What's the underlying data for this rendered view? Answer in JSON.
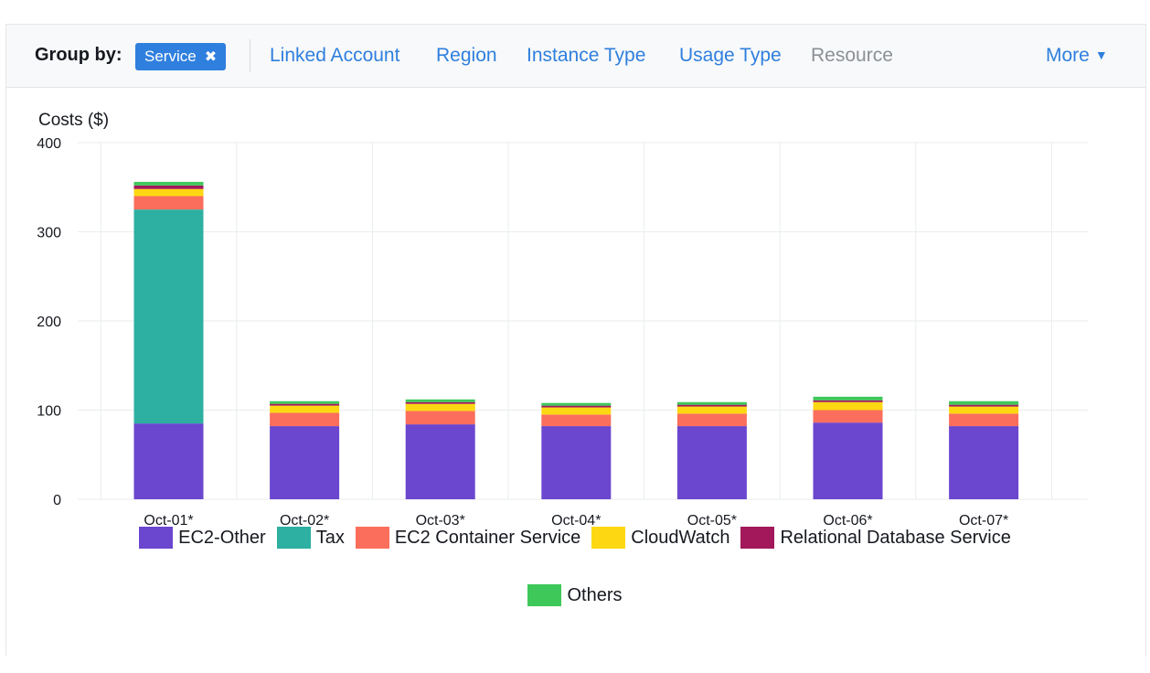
{
  "groupby": {
    "label": "Group by:",
    "active_chip": "Service",
    "options": [
      "Linked Account",
      "Region",
      "Instance Type",
      "Usage Type"
    ],
    "disabled_option": "Resource",
    "more_label": "More"
  },
  "chart_data": {
    "type": "bar",
    "stacked": true,
    "ylabel": "Costs ($)",
    "ylim": [
      0,
      400
    ],
    "yticks": [
      0,
      100,
      200,
      300,
      400
    ],
    "grid": true,
    "legend_position": "bottom",
    "categories": [
      "Oct-01*",
      "Oct-02*",
      "Oct-03*",
      "Oct-04*",
      "Oct-05*",
      "Oct-06*",
      "Oct-07*"
    ],
    "series": [
      {
        "name": "EC2-Other",
        "color": "#6b46cf",
        "values": [
          85,
          82,
          84,
          82,
          82,
          86,
          82
        ]
      },
      {
        "name": "Tax",
        "color": "#2db0a1",
        "values": [
          240,
          0,
          0,
          0,
          0,
          0,
          0
        ]
      },
      {
        "name": "EC2 Container Service",
        "color": "#fb6e5c",
        "values": [
          15,
          15,
          15,
          13,
          14,
          14,
          14
        ]
      },
      {
        "name": "CloudWatch",
        "color": "#fdd812",
        "values": [
          8,
          8,
          8,
          8,
          8,
          9,
          8
        ]
      },
      {
        "name": "Relational Database Service",
        "color": "#a3185a",
        "values": [
          4,
          2,
          2,
          2,
          2,
          2,
          2
        ]
      },
      {
        "name": "Others",
        "color": "#3ec85a",
        "values": [
          4,
          3,
          3,
          3,
          3,
          4,
          4
        ]
      }
    ]
  }
}
